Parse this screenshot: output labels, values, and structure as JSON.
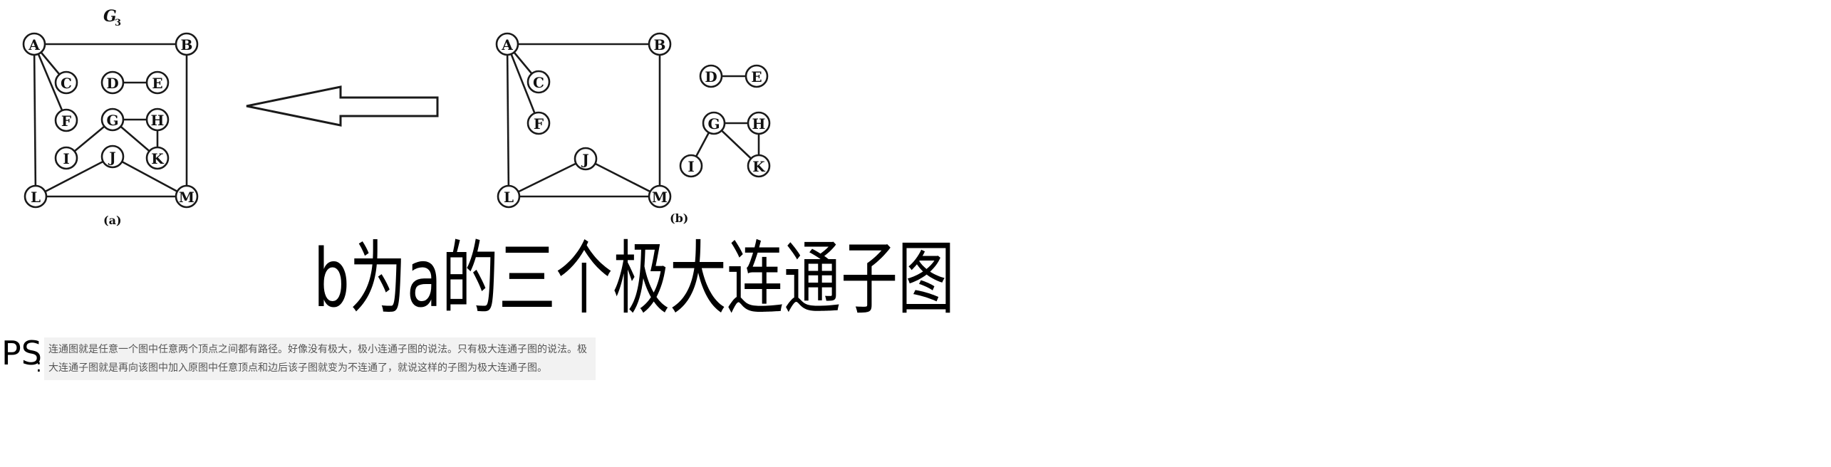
{
  "graph_a": {
    "title": "G",
    "title_sub": "3",
    "caption": "(a)",
    "nodes": [
      "A",
      "B",
      "C",
      "D",
      "E",
      "F",
      "G",
      "H",
      "I",
      "J",
      "K",
      "L",
      "M"
    ],
    "edges": [
      [
        "A",
        "B"
      ],
      [
        "A",
        "C"
      ],
      [
        "A",
        "F"
      ],
      [
        "A",
        "L"
      ],
      [
        "B",
        "M"
      ],
      [
        "D",
        "E"
      ],
      [
        "G",
        "H"
      ],
      [
        "G",
        "I"
      ],
      [
        "G",
        "K"
      ],
      [
        "H",
        "K"
      ],
      [
        "J",
        "L"
      ],
      [
        "J",
        "M"
      ],
      [
        "L",
        "M"
      ]
    ]
  },
  "graph_b": {
    "caption": "(b)",
    "nodes": [
      "A",
      "B",
      "C",
      "F",
      "J",
      "L",
      "M",
      "D",
      "E",
      "G",
      "H",
      "I",
      "K"
    ],
    "edges": [
      [
        "A",
        "B"
      ],
      [
        "A",
        "C"
      ],
      [
        "A",
        "F"
      ],
      [
        "A",
        "L"
      ],
      [
        "B",
        "M"
      ],
      [
        "J",
        "L"
      ],
      [
        "J",
        "M"
      ],
      [
        "L",
        "M"
      ],
      [
        "D",
        "E"
      ],
      [
        "G",
        "H"
      ],
      [
        "G",
        "I"
      ],
      [
        "G",
        "K"
      ],
      [
        "H",
        "K"
      ]
    ]
  },
  "handwriting": {
    "main": "b为a的三个极大连通子图",
    "ps_label": "PS",
    "ps_colon": ":"
  },
  "note": {
    "text": "连通图就是任意一个图中任意两个顶点之间都有路径。好像没有极大，极小连通子图的说法。只有极大连通子图的说法。极大连通子图就是再向该图中加入原图中任意顶点和边后该子图就变为不连通了，就说这样的子图为极大连通子图。"
  }
}
